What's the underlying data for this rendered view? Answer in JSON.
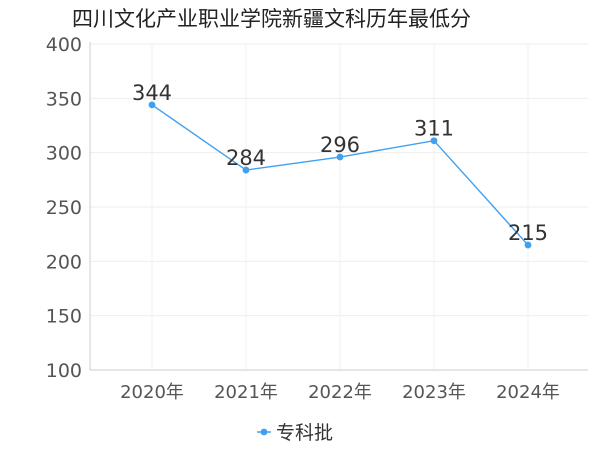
{
  "chart_data": {
    "type": "line",
    "title": "四川文化产业职业学院新疆文科历年最低分",
    "categories": [
      "2020年",
      "2021年",
      "2022年",
      "2023年",
      "2024年"
    ],
    "series": [
      {
        "name": "专科批",
        "values": [
          344,
          284,
          296,
          311,
          215
        ],
        "color": "#3fa0f0"
      }
    ],
    "ylim": [
      100,
      400
    ],
    "yticks": [
      100,
      150,
      200,
      250,
      300,
      350,
      400
    ],
    "grid": true,
    "legend_position": "bottom-center",
    "data_labels": true
  }
}
